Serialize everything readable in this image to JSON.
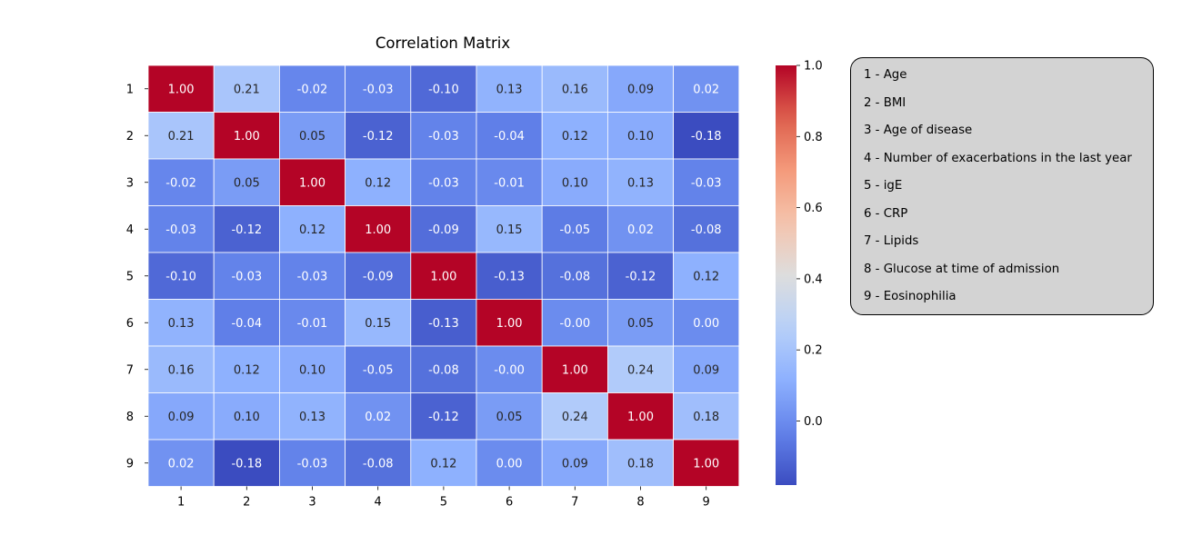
{
  "chart_data": {
    "type": "heatmap",
    "title": "Correlation Matrix",
    "colormap": "coolwarm",
    "row_labels": [
      "1",
      "2",
      "3",
      "4",
      "5",
      "6",
      "7",
      "8",
      "9"
    ],
    "col_labels": [
      "1",
      "2",
      "3",
      "4",
      "5",
      "6",
      "7",
      "8",
      "9"
    ],
    "values": [
      [
        1.0,
        0.21,
        -0.02,
        -0.03,
        -0.1,
        0.13,
        0.16,
        0.09,
        0.02
      ],
      [
        0.21,
        1.0,
        0.05,
        -0.12,
        -0.03,
        -0.04,
        0.12,
        0.1,
        -0.18
      ],
      [
        -0.02,
        0.05,
        1.0,
        0.12,
        -0.03,
        -0.01,
        0.1,
        0.13,
        -0.03
      ],
      [
        -0.03,
        -0.12,
        0.12,
        1.0,
        -0.09,
        0.15,
        -0.05,
        0.02,
        -0.08
      ],
      [
        -0.1,
        -0.03,
        -0.03,
        -0.09,
        1.0,
        -0.13,
        -0.08,
        -0.12,
        0.12
      ],
      [
        0.13,
        -0.04,
        -0.01,
        0.15,
        -0.13,
        1.0,
        -0.0,
        0.05,
        0.0
      ],
      [
        0.16,
        0.12,
        0.1,
        -0.05,
        -0.08,
        -0.0,
        1.0,
        0.24,
        0.09
      ],
      [
        0.09,
        0.1,
        0.13,
        0.02,
        -0.12,
        0.05,
        0.24,
        1.0,
        0.18
      ],
      [
        0.02,
        -0.18,
        -0.03,
        -0.08,
        0.12,
        0.0,
        0.09,
        0.18,
        1.0
      ]
    ],
    "cell_labels": [
      [
        "1.00",
        "0.21",
        "-0.02",
        "-0.03",
        "-0.10",
        "0.13",
        "0.16",
        "0.09",
        "0.02"
      ],
      [
        "0.21",
        "1.00",
        "0.05",
        "-0.12",
        "-0.03",
        "-0.04",
        "0.12",
        "0.10",
        "-0.18"
      ],
      [
        "-0.02",
        "0.05",
        "1.00",
        "0.12",
        "-0.03",
        "-0.01",
        "0.10",
        "0.13",
        "-0.03"
      ],
      [
        "-0.03",
        "-0.12",
        "0.12",
        "1.00",
        "-0.09",
        "0.15",
        "-0.05",
        "0.02",
        "-0.08"
      ],
      [
        "-0.10",
        "-0.03",
        "-0.03",
        "-0.09",
        "1.00",
        "-0.13",
        "-0.08",
        "-0.12",
        "0.12"
      ],
      [
        "0.13",
        "-0.04",
        "-0.01",
        "0.15",
        "-0.13",
        "1.00",
        "-0.00",
        "0.05",
        "0.00"
      ],
      [
        "0.16",
        "0.12",
        "0.10",
        "-0.05",
        "-0.08",
        "-0.00",
        "1.00",
        "0.24",
        "0.09"
      ],
      [
        "0.09",
        "0.10",
        "0.13",
        "0.02",
        "-0.12",
        "0.05",
        "0.24",
        "1.00",
        "0.18"
      ],
      [
        "0.02",
        "-0.18",
        "-0.03",
        "-0.08",
        "0.12",
        "0.00",
        "0.09",
        "0.18",
        "1.00"
      ]
    ],
    "colorbar": {
      "vmin": -0.18,
      "vmax": 1.0,
      "ticks": [
        0.0,
        0.2,
        0.4,
        0.6,
        0.8,
        1.0
      ],
      "tick_labels": [
        "0.0",
        "0.2",
        "0.4",
        "0.6",
        "0.8",
        "1.0"
      ]
    },
    "grid": true
  },
  "legend": {
    "items": [
      "1 - Age",
      "2 - BMI",
      "3 - Age of disease",
      "4 - Number of exacerbations in the last year",
      "5 - igE",
      "6 - CRP",
      "7 - Lipids",
      "8 - Glucose at time of admission",
      "9 - Eosinophilia"
    ]
  }
}
